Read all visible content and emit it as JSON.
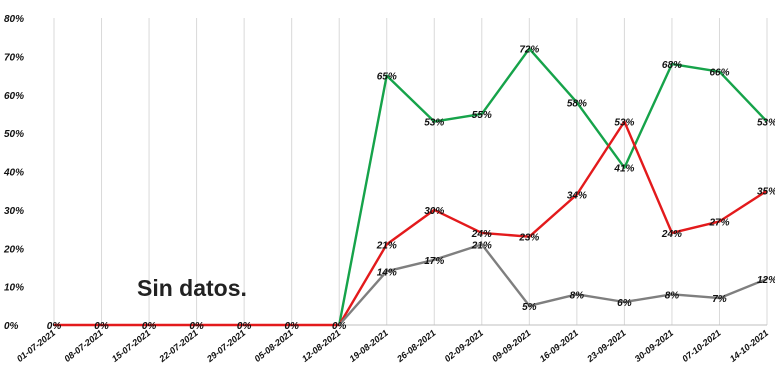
{
  "chart_data": {
    "type": "line",
    "title": "",
    "xlabel": "",
    "ylabel": "",
    "ylim": [
      0,
      80
    ],
    "yticks": [
      "0%",
      "10%",
      "20%",
      "30%",
      "40%",
      "50%",
      "60%",
      "70%",
      "80%"
    ],
    "grid": "vertical",
    "legend": "none",
    "categories": [
      "01-07-2021",
      "08-07-2021",
      "15-07-2021",
      "22-07-2021",
      "29-07-2021",
      "05-08-2021",
      "12-08-2021",
      "19-08-2021",
      "26-08-2021",
      "02-09-2021",
      "09-09-2021",
      "16-09-2021",
      "23-09-2021",
      "30-09-2021",
      "07-10-2021",
      "14-10-2021"
    ],
    "series": [
      {
        "color": "#16a34a",
        "values": [
          null,
          null,
          null,
          null,
          null,
          null,
          0,
          65,
          53,
          55,
          72,
          58,
          41,
          68,
          66,
          53
        ],
        "labels": [
          "",
          "",
          "",
          "",
          "",
          "",
          "",
          "65%",
          "53%",
          "55%",
          "72%",
          "58%",
          "41%",
          "68%",
          "66%",
          "53%"
        ]
      },
      {
        "color": "#e31a1c",
        "values": [
          0,
          0,
          0,
          0,
          0,
          0,
          0,
          21,
          30,
          24,
          23,
          34,
          53,
          24,
          27,
          35
        ],
        "labels": [
          "0%",
          "0%",
          "0%",
          "0%",
          "0%",
          "0%",
          "0%",
          "21%",
          "30%",
          "24%",
          "23%",
          "34%",
          "53%",
          "24%",
          "27%",
          "35%"
        ]
      },
      {
        "color": "#7f7f7f",
        "values": [
          null,
          null,
          null,
          null,
          null,
          null,
          0,
          14,
          17,
          21,
          5,
          8,
          6,
          8,
          7,
          12
        ],
        "labels": [
          "",
          "",
          "",
          "",
          "",
          "",
          "",
          "14%",
          "17%",
          "21%",
          "5%",
          "8%",
          "6%",
          "8%",
          "7%",
          "12%"
        ]
      }
    ],
    "annotation": "Sin datos."
  }
}
